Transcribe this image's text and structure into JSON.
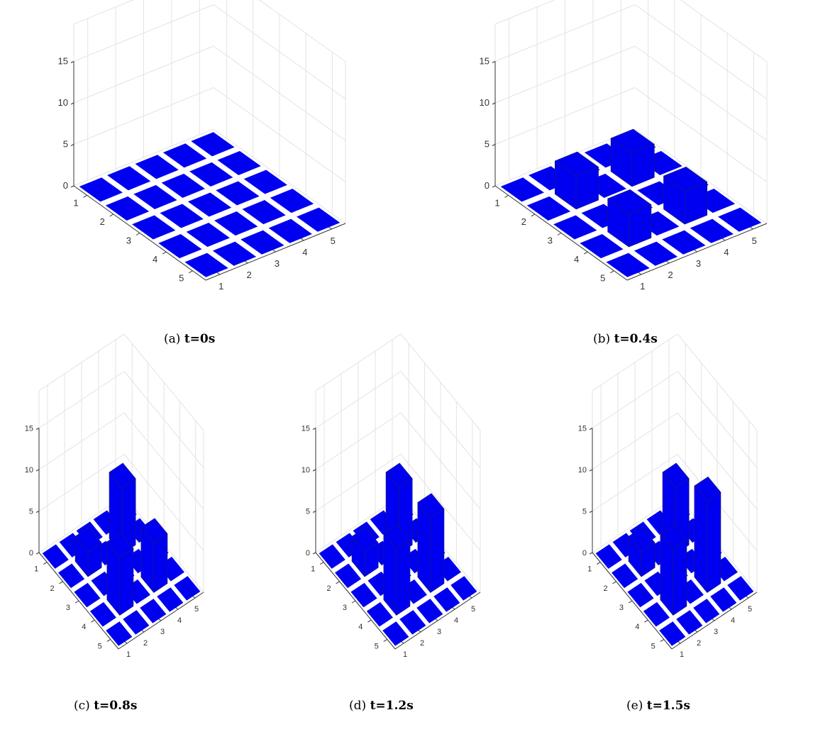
{
  "figure": {
    "bar_color": "#0000F0",
    "bar_edge_color": "#1A1A6E",
    "grid_color": "#E3E3E3",
    "axis_color": "#333333"
  },
  "chart_data": [
    {
      "id": "a",
      "type": "bar3",
      "caption_prefix": "(a)",
      "caption_time": "t=0s",
      "zticks": [
        "0",
        "5",
        "10",
        "15"
      ],
      "xticks": [
        "1",
        "2",
        "3",
        "4",
        "5"
      ],
      "yticks": [
        "1",
        "2",
        "3",
        "4",
        "5"
      ],
      "zlim": [
        0,
        15
      ],
      "grid": true,
      "values": [
        [
          0,
          0,
          0,
          0,
          0
        ],
        [
          0,
          0,
          0,
          0,
          0
        ],
        [
          0,
          0,
          0,
          0,
          0
        ],
        [
          0,
          0,
          0,
          0,
          0
        ],
        [
          0,
          0,
          0,
          0,
          0
        ]
      ]
    },
    {
      "id": "b",
      "type": "bar3",
      "caption_prefix": "(b)",
      "caption_time": "t=0.4s",
      "zticks": [
        "0",
        "5",
        "10",
        "15"
      ],
      "xticks": [
        "1",
        "2",
        "3",
        "4",
        "5"
      ],
      "yticks": [
        "1",
        "2",
        "3",
        "4",
        "5"
      ],
      "zlim": [
        0,
        15
      ],
      "grid": true,
      "values": [
        [
          0,
          0,
          0,
          0,
          0
        ],
        [
          0,
          4,
          0,
          4,
          0
        ],
        [
          0,
          0,
          0,
          0,
          0
        ],
        [
          0,
          4,
          0,
          4,
          0
        ],
        [
          0,
          0,
          0,
          0,
          0
        ]
      ]
    },
    {
      "id": "c",
      "type": "bar3",
      "caption_prefix": "(c)",
      "caption_time": "t=0.8s",
      "zticks": [
        "0",
        "5",
        "10",
        "15"
      ],
      "xticks": [
        "1",
        "2",
        "3",
        "4",
        "5"
      ],
      "yticks": [
        "1",
        "2",
        "3",
        "4",
        "5"
      ],
      "zlim": [
        0,
        15
      ],
      "grid": true,
      "values": [
        [
          0,
          0,
          0,
          0,
          0
        ],
        [
          0,
          3,
          0,
          8,
          0
        ],
        [
          0,
          0,
          0,
          0,
          0
        ],
        [
          0,
          7,
          0,
          6,
          0
        ],
        [
          0,
          0,
          0,
          0,
          0
        ]
      ]
    },
    {
      "id": "d",
      "type": "bar3",
      "caption_prefix": "(d)",
      "caption_time": "t=1.2s",
      "zticks": [
        "0",
        "5",
        "10",
        "15"
      ],
      "xticks": [
        "1",
        "2",
        "3",
        "4",
        "5"
      ],
      "yticks": [
        "1",
        "2",
        "3",
        "4",
        "5"
      ],
      "zlim": [
        0,
        15
      ],
      "grid": true,
      "values": [
        [
          0,
          0,
          0,
          0,
          0
        ],
        [
          0,
          3,
          0,
          8,
          0
        ],
        [
          0,
          0,
          0,
          0,
          0
        ],
        [
          0,
          8,
          0,
          9,
          0
        ],
        [
          0,
          0,
          0,
          0,
          0
        ]
      ]
    },
    {
      "id": "e",
      "type": "bar3",
      "caption_prefix": "(e)",
      "caption_time": "t=1.5s",
      "zticks": [
        "0",
        "5",
        "10",
        "15"
      ],
      "xticks": [
        "1",
        "2",
        "3",
        "4",
        "5"
      ],
      "yticks": [
        "1",
        "2",
        "3",
        "4",
        "5"
      ],
      "zlim": [
        0,
        15
      ],
      "grid": true,
      "values": [
        [
          0,
          0,
          0,
          0,
          0
        ],
        [
          0,
          3,
          0,
          8,
          0
        ],
        [
          0,
          0,
          0,
          0,
          0
        ],
        [
          0,
          8,
          0,
          11,
          0
        ],
        [
          0,
          0,
          0,
          0,
          0
        ]
      ]
    }
  ]
}
